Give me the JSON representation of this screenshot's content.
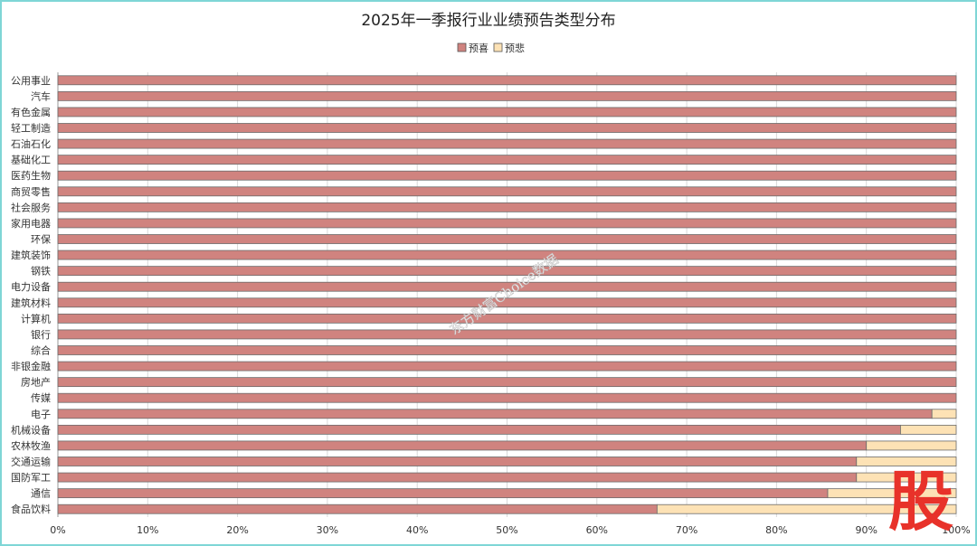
{
  "chart_data": {
    "type": "bar",
    "orientation": "horizontal",
    "stacked": "percent",
    "title": "2025年一季报行业业绩预告类型分布",
    "categories": [
      "公用事业",
      "汽车",
      "有色金属",
      "轻工制造",
      "石油石化",
      "基础化工",
      "医药生物",
      "商贸零售",
      "社会服务",
      "家用电器",
      "环保",
      "建筑装饰",
      "钢铁",
      "电力设备",
      "建筑材料",
      "计算机",
      "银行",
      "综合",
      "非银金融",
      "房地产",
      "传媒",
      "电子",
      "机械设备",
      "农林牧渔",
      "交通运输",
      "国防军工",
      "通信",
      "食品饮料"
    ],
    "series": [
      {
        "name": "预喜",
        "color": "#d0837f",
        "values": [
          100,
          100,
          100,
          100,
          100,
          100,
          100,
          100,
          100,
          100,
          100,
          100,
          100,
          100,
          100,
          100,
          100,
          100,
          100,
          100,
          100,
          97.3,
          93.8,
          90,
          88.9,
          88.9,
          85.7,
          66.7
        ]
      },
      {
        "name": "预悲",
        "color": "#fde2b5",
        "values": [
          0,
          0,
          0,
          0,
          0,
          0,
          0,
          0,
          0,
          0,
          0,
          0,
          0,
          0,
          0,
          0,
          0,
          0,
          0,
          0,
          0,
          2.7,
          6.2,
          10,
          11.1,
          11.1,
          14.3,
          33.3
        ]
      }
    ],
    "x_ticks": [
      "0%",
      "10%",
      "20%",
      "30%",
      "40%",
      "50%",
      "60%",
      "70%",
      "80%",
      "90%",
      "100%"
    ],
    "xlim": [
      0,
      100
    ],
    "legend_position": "top",
    "grid": true
  },
  "watermark": "东方财富Choice数据",
  "logo": "股"
}
